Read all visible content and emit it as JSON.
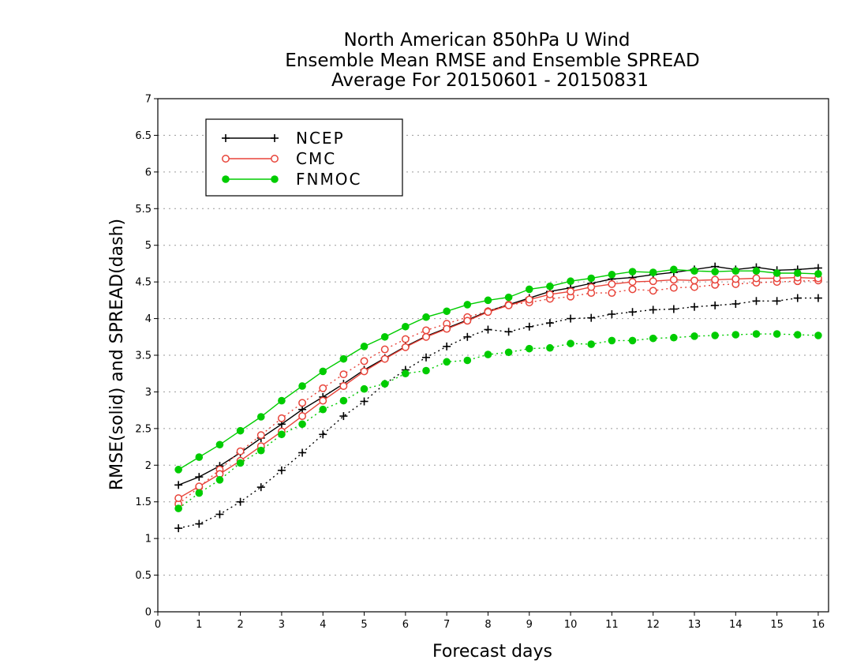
{
  "chart_data": {
    "type": "line",
    "title_lines": [
      "North American 850hPa U Wind",
      "Ensemble Mean RMSE and Ensemble SPREAD",
      "Average For 20150601 - 20150831"
    ],
    "xlabel": "Forecast days",
    "ylabel": "RMSE(solid)  and  SPREAD(dash)",
    "xlim": [
      0,
      16.25
    ],
    "ylim": [
      0,
      7
    ],
    "x_ticks": [
      "0",
      "1",
      "2",
      "3",
      "4",
      "5",
      "6",
      "7",
      "8",
      "9",
      "10",
      "11",
      "12",
      "13",
      "14",
      "15",
      "16"
    ],
    "y_ticks": [
      "0",
      "0.5",
      "1",
      "1.5",
      "2",
      "2.5",
      "3",
      "3.5",
      "4",
      "4.5",
      "5",
      "5.5",
      "6",
      "6.5",
      "7"
    ],
    "grid": "horizontal-dotted",
    "legend_position": "top-left",
    "x": [
      0.5,
      1,
      1.5,
      2,
      2.5,
      3,
      3.5,
      4,
      4.5,
      5,
      5.5,
      6,
      6.5,
      7,
      7.5,
      8,
      8.5,
      9,
      9.5,
      10,
      10.5,
      11,
      11.5,
      12,
      12.5,
      13,
      13.5,
      14,
      14.5,
      15,
      15.5,
      16
    ],
    "series": [
      {
        "name": "NCEP",
        "color": "#000000",
        "marker": "plus",
        "rmse": [
          1.73,
          1.84,
          1.99,
          2.17,
          2.37,
          2.56,
          2.76,
          2.93,
          3.11,
          3.3,
          3.46,
          3.62,
          3.76,
          3.87,
          3.98,
          4.1,
          4.19,
          4.28,
          4.37,
          4.42,
          4.48,
          4.54,
          4.56,
          4.6,
          4.63,
          4.67,
          4.71,
          4.67,
          4.7,
          4.66,
          4.67,
          4.69
        ],
        "spread": [
          1.14,
          1.2,
          1.33,
          1.5,
          1.7,
          1.93,
          2.17,
          2.42,
          2.67,
          2.87,
          3.11,
          3.3,
          3.47,
          3.62,
          3.75,
          3.85,
          3.82,
          3.89,
          3.94,
          4.0,
          4.01,
          4.06,
          4.09,
          4.12,
          4.13,
          4.16,
          4.18,
          4.2,
          4.24,
          4.24,
          4.28,
          4.28
        ]
      },
      {
        "name": "CMC",
        "color": "#e8443a",
        "marker": "open-circle",
        "rmse": [
          1.55,
          1.71,
          1.88,
          2.06,
          2.26,
          2.46,
          2.67,
          2.88,
          3.08,
          3.28,
          3.45,
          3.61,
          3.75,
          3.86,
          3.97,
          4.09,
          4.18,
          4.26,
          4.33,
          4.37,
          4.43,
          4.47,
          4.5,
          4.51,
          4.53,
          4.52,
          4.53,
          4.54,
          4.55,
          4.55,
          4.56,
          4.55
        ],
        "spread": [
          1.47,
          1.7,
          1.94,
          2.19,
          2.41,
          2.64,
          2.85,
          3.05,
          3.24,
          3.42,
          3.58,
          3.72,
          3.84,
          3.93,
          4.02,
          4.1,
          4.19,
          4.22,
          4.27,
          4.3,
          4.35,
          4.35,
          4.4,
          4.38,
          4.42,
          4.43,
          4.46,
          4.47,
          4.49,
          4.5,
          4.51,
          4.52
        ]
      },
      {
        "name": "FNMOC",
        "color": "#00cc00",
        "marker": "filled-circle",
        "rmse": [
          1.94,
          2.11,
          2.28,
          2.47,
          2.66,
          2.88,
          3.08,
          3.28,
          3.45,
          3.62,
          3.75,
          3.89,
          4.02,
          4.1,
          4.19,
          4.25,
          4.29,
          4.4,
          4.44,
          4.51,
          4.55,
          4.6,
          4.64,
          4.63,
          4.67,
          4.65,
          4.64,
          4.65,
          4.65,
          4.62,
          4.62,
          4.61
        ],
        "spread": [
          1.41,
          1.62,
          1.8,
          2.03,
          2.2,
          2.42,
          2.56,
          2.76,
          2.88,
          3.04,
          3.11,
          3.25,
          3.29,
          3.41,
          3.43,
          3.51,
          3.54,
          3.59,
          3.6,
          3.66,
          3.65,
          3.7,
          3.7,
          3.73,
          3.74,
          3.76,
          3.77,
          3.78,
          3.79,
          3.79,
          3.78,
          3.77
        ]
      }
    ]
  }
}
